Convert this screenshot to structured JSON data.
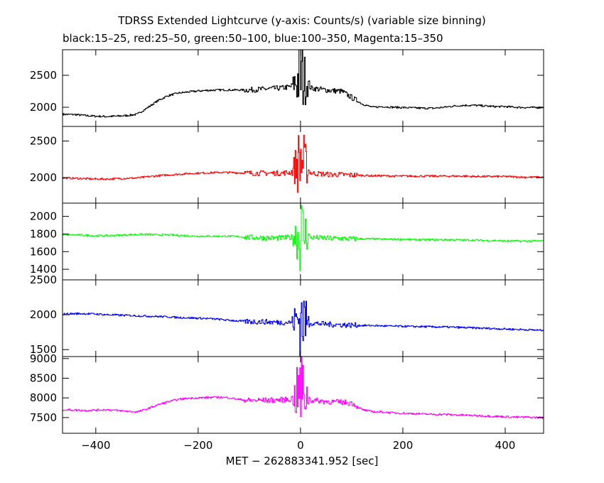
{
  "title_line1": "TDRSS Extended Lightcurve (y-axis: Counts/s) (variable size binning)",
  "title_line2": "black:15–25, red:25–50, green:50–100, blue:100–350, Magenta:15–350",
  "chart_data": {
    "type": "line",
    "xlabel": "MET − 262883341.952 [sec]",
    "xlim": [
      -465,
      475
    ],
    "xticks": [
      -400,
      -200,
      0,
      200,
      400
    ],
    "xtick_labels": [
      "−400",
      "−200",
      "0",
      "200",
      "400"
    ],
    "panels": [
      {
        "name": "black:15–25",
        "color": "#000000",
        "ylim": [
          1700,
          2900
        ],
        "yticks": [
          2000,
          2500
        ],
        "series": [
          {
            "x": [
              -465,
              -440,
              -420,
              -400,
              -380,
              -360,
              -340,
              -320,
              -300,
              -280,
              -260,
              -240,
              -220,
              -200,
              -180,
              -160,
              -140,
              -120,
              -100,
              -80,
              -60,
              -40,
              -20,
              -10,
              0,
              10,
              20,
              40,
              60,
              80,
              100,
              120,
              140,
              160,
              180,
              200,
              220,
              240,
              260,
              280,
              300,
              320,
              340,
              360,
              380,
              400,
              420,
              440,
              460,
              475
            ],
            "y": [
              1890,
              1885,
              1870,
              1860,
              1855,
              1860,
              1870,
              1890,
              1990,
              2100,
              2180,
              2220,
              2240,
              2255,
              2265,
              2270,
              2270,
              2270,
              2270,
              2280,
              2290,
              2300,
              2320,
              2400,
              2500,
              2400,
              2300,
              2280,
              2260,
              2250,
              2150,
              2050,
              2000,
              2010,
              2000,
              1995,
              1990,
              1985,
              1985,
              2000,
              2020,
              2030,
              2030,
              2020,
              2010,
              2010,
              2000,
              1995,
              1995,
              2000
            ]
          }
        ]
      },
      {
        "name": "red:25–50",
        "color": "#ff0000",
        "ylim": [
          1650,
          2700
        ],
        "yticks": [
          2000,
          2500
        ],
        "series": [
          {
            "x": [
              -465,
              -440,
              -420,
              -400,
              -380,
              -360,
              -340,
              -320,
              -300,
              -280,
              -260,
              -240,
              -220,
              -200,
              -180,
              -160,
              -140,
              -120,
              -100,
              -80,
              -60,
              -40,
              -20,
              -10,
              0,
              10,
              20,
              40,
              60,
              80,
              100,
              120,
              140,
              160,
              180,
              200,
              220,
              240,
              260,
              280,
              300,
              320,
              340,
              360,
              380,
              400,
              420,
              440,
              460,
              475
            ],
            "y": [
              1995,
              1990,
              1985,
              1980,
              1980,
              1985,
              1990,
              1995,
              2010,
              2025,
              2035,
              2045,
              2055,
              2060,
              2065,
              2070,
              2070,
              2065,
              2060,
              2060,
              2060,
              2060,
              2070,
              2150,
              2250,
              2150,
              2060,
              2050,
              2040,
              2040,
              2035,
              2030,
              2025,
              2025,
              2020,
              2020,
              2020,
              2020,
              2020,
              2020,
              2020,
              2020,
              2015,
              2015,
              2015,
              2015,
              2010,
              2005,
              2005,
              2005
            ]
          }
        ]
      },
      {
        "name": "green:50–100",
        "color": "#00ff00",
        "ylim": [
          1280,
          2150
        ],
        "yticks": [
          1400,
          1600,
          1800,
          2000
        ],
        "series": [
          {
            "x": [
              -465,
              -440,
              -420,
              -400,
              -380,
              -360,
              -340,
              -320,
              -300,
              -280,
              -260,
              -240,
              -220,
              -200,
              -180,
              -160,
              -140,
              -120,
              -100,
              -80,
              -60,
              -40,
              -20,
              -10,
              0,
              10,
              20,
              40,
              60,
              80,
              100,
              120,
              140,
              160,
              180,
              200,
              220,
              240,
              260,
              280,
              300,
              320,
              340,
              360,
              380,
              400,
              420,
              440,
              460,
              475
            ],
            "y": [
              1790,
              1790,
              1785,
              1780,
              1780,
              1785,
              1790,
              1795,
              1795,
              1790,
              1790,
              1785,
              1780,
              1775,
              1775,
              1775,
              1775,
              1770,
              1760,
              1760,
              1755,
              1755,
              1760,
              1790,
              1820,
              1790,
              1760,
              1755,
              1750,
              1750,
              1745,
              1745,
              1745,
              1740,
              1740,
              1740,
              1735,
              1735,
              1735,
              1735,
              1735,
              1730,
              1730,
              1725,
              1725,
              1720,
              1720,
              1720,
              1720,
              1720
            ]
          }
        ]
      },
      {
        "name": "blue:100–350",
        "color": "#0000ff",
        "ylim": [
          1400,
          2500
        ],
        "yticks": [
          1500,
          2000,
          2500
        ],
        "series": [
          {
            "x": [
              -465,
              -440,
              -420,
              -400,
              -380,
              -360,
              -340,
              -320,
              -300,
              -280,
              -260,
              -240,
              -220,
              -200,
              -180,
              -160,
              -140,
              -120,
              -100,
              -80,
              -60,
              -40,
              -20,
              -10,
              0,
              10,
              20,
              40,
              60,
              80,
              100,
              120,
              140,
              160,
              180,
              200,
              220,
              240,
              260,
              280,
              300,
              320,
              340,
              360,
              380,
              400,
              420,
              440,
              460,
              475
            ],
            "y": [
              2010,
              2015,
              2015,
              2010,
              2000,
              1995,
              1990,
              1985,
              1980,
              1975,
              1970,
              1960,
              1955,
              1950,
              1945,
              1935,
              1920,
              1910,
              1900,
              1900,
              1895,
              1890,
              1890,
              1920,
              1950,
              1920,
              1880,
              1870,
              1860,
              1855,
              1850,
              1845,
              1845,
              1840,
              1835,
              1835,
              1830,
              1830,
              1825,
              1825,
              1820,
              1815,
              1810,
              1805,
              1800,
              1795,
              1790,
              1785,
              1780,
              1775
            ]
          }
        ]
      },
      {
        "name": "Magenta:15–350",
        "color": "#ff00ff",
        "ylim": [
          7100,
          9050
        ],
        "yticks": [
          7500,
          8000,
          8500,
          9000
        ],
        "series": [
          {
            "x": [
              -465,
              -440,
              -420,
              -400,
              -380,
              -360,
              -340,
              -320,
              -300,
              -280,
              -260,
              -240,
              -220,
              -200,
              -180,
              -160,
              -140,
              -120,
              -100,
              -80,
              -60,
              -40,
              -20,
              -10,
              0,
              10,
              20,
              40,
              60,
              80,
              100,
              120,
              140,
              160,
              180,
              200,
              220,
              240,
              260,
              280,
              300,
              320,
              340,
              360,
              380,
              400,
              420,
              440,
              460,
              475
            ],
            "y": [
              7700,
              7690,
              7680,
              7690,
              7700,
              7680,
              7660,
              7640,
              7720,
              7820,
              7900,
              7960,
              7990,
              8000,
              8010,
              8020,
              8000,
              7960,
              7930,
              7940,
              7940,
              7950,
              7960,
              8050,
              8200,
              8050,
              7940,
              7920,
              7900,
              7890,
              7870,
              7700,
              7650,
              7640,
              7620,
              7610,
              7600,
              7590,
              7580,
              7580,
              7570,
              7560,
              7550,
              7540,
              7530,
              7520,
              7510,
              7510,
              7500,
              7500
            ]
          }
        ]
      }
    ]
  }
}
